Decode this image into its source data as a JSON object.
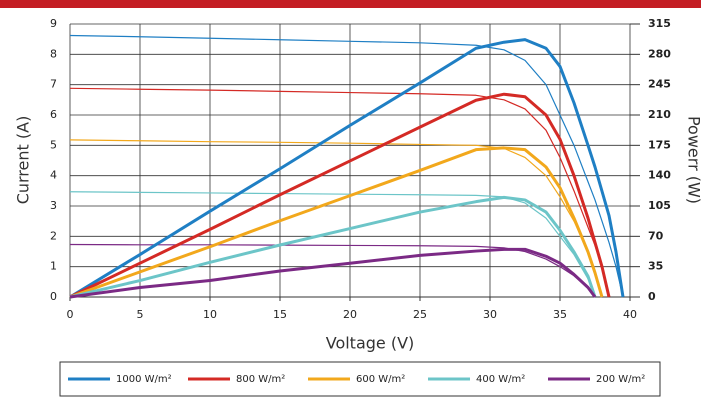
{
  "chart_data": {
    "type": "line",
    "x_label": "Voltage (V)",
    "y_label": "Current (A)",
    "y2_label": "Powerr (W)",
    "x": [
      0,
      5,
      10,
      15,
      20,
      25,
      29,
      31,
      32.5,
      34,
      35,
      36,
      37,
      37.5,
      38,
      38.5,
      39,
      39.5
    ],
    "xlim": [
      0,
      40
    ],
    "xticks": [
      0,
      5,
      10,
      15,
      20,
      25,
      30,
      35,
      40
    ],
    "ylim": [
      0,
      9
    ],
    "yticks": [
      0,
      1,
      2,
      3,
      4,
      5,
      6,
      7,
      8,
      9
    ],
    "y2lim": [
      0,
      315
    ],
    "y2ticks": [
      0,
      35,
      70,
      105,
      140,
      175,
      210,
      245,
      280,
      315
    ],
    "grid": true,
    "legend": "bottom",
    "series": [
      {
        "name": "1000 W/m²",
        "color": "#1f7fc4",
        "values": [
          8.62,
          8.58,
          8.53,
          8.48,
          8.43,
          8.38,
          8.3,
          8.15,
          7.8,
          7.0,
          6.0,
          5.0,
          3.8,
          3.2,
          2.5,
          1.8,
          1.0,
          0
        ]
      },
      {
        "name": "800 W/m²",
        "color": "#d42a25",
        "values": [
          6.88,
          6.85,
          6.82,
          6.78,
          6.74,
          6.7,
          6.65,
          6.5,
          6.2,
          5.5,
          4.6,
          3.5,
          2.3,
          1.7,
          1.0,
          0,
          null,
          null
        ]
      },
      {
        "name": "600 W/m²",
        "color": "#f2a81c",
        "values": [
          5.18,
          5.15,
          5.12,
          5.1,
          5.07,
          5.03,
          5.0,
          4.9,
          4.6,
          4.0,
          3.3,
          2.5,
          1.5,
          0.8,
          0,
          null,
          null,
          null
        ]
      },
      {
        "name": "400 W/m²",
        "color": "#6cc5c8",
        "values": [
          3.47,
          3.45,
          3.43,
          3.41,
          3.39,
          3.37,
          3.35,
          3.3,
          3.1,
          2.6,
          2.0,
          1.4,
          0.6,
          0,
          null,
          null,
          null,
          null
        ]
      },
      {
        "name": "200 W/m²",
        "color": "#7b2a85",
        "values": [
          1.73,
          1.72,
          1.72,
          1.71,
          1.7,
          1.69,
          1.67,
          1.62,
          1.5,
          1.25,
          1.0,
          0.7,
          0.3,
          0,
          null,
          null,
          null,
          null
        ]
      }
    ],
    "power_series": [
      {
        "axis": "y2",
        "color": "#1f7fc4",
        "values": [
          0,
          49,
          99,
          148,
          198,
          247,
          287,
          294,
          297,
          287,
          266,
          224,
          175,
          150,
          122,
          94,
          52,
          0
        ]
      },
      {
        "axis": "y2",
        "color": "#d42a25",
        "values": [
          0,
          39,
          78,
          118,
          157,
          196,
          227,
          234,
          231,
          210,
          182,
          140,
          91,
          63,
          35,
          0,
          null,
          null
        ]
      },
      {
        "axis": "y2",
        "color": "#f2a81c",
        "values": [
          0,
          29,
          58,
          88,
          117,
          146,
          170,
          172,
          170,
          150,
          126,
          91,
          52,
          28,
          0,
          null,
          null,
          null
        ]
      },
      {
        "axis": "y2",
        "color": "#6cc5c8",
        "values": [
          0,
          19,
          40,
          60,
          79,
          98,
          110,
          115,
          112,
          98,
          77,
          52,
          24,
          0,
          null,
          null,
          null,
          null
        ]
      },
      {
        "axis": "y2",
        "color": "#7b2a85",
        "values": [
          0,
          11,
          19,
          30,
          39,
          48,
          53,
          55,
          55,
          47,
          39,
          26,
          11,
          0,
          null,
          null,
          null,
          null
        ]
      }
    ]
  }
}
